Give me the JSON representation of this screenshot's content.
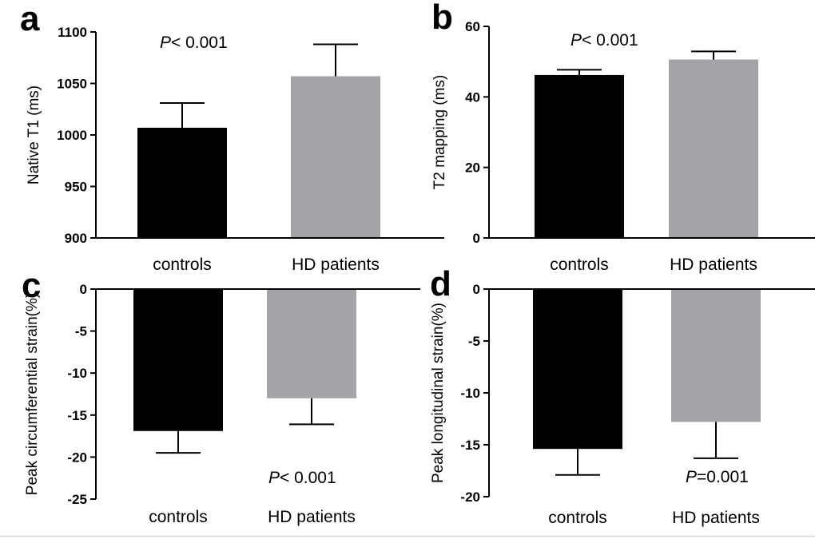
{
  "colors": {
    "controls": "#000000",
    "hd_patients": "#a3a3a8",
    "axis": "#000000"
  },
  "chart_data": [
    {
      "panel": "a",
      "type": "bar",
      "categories": [
        "controls",
        "HD patients"
      ],
      "values": [
        1007,
        1057
      ],
      "errors": [
        24,
        31
      ],
      "error_direction": "up",
      "ylabel": "Native T1 (ms)",
      "ylim": [
        900,
        1100
      ],
      "yticks": [
        900,
        950,
        1000,
        1050,
        1100
      ],
      "ytick_labels": [
        "900",
        "950",
        "1000",
        "1050",
        "1100"
      ],
      "annotation": {
        "p": "P",
        "text": "< 0.001"
      }
    },
    {
      "panel": "b",
      "type": "bar",
      "categories": [
        "controls",
        "HD patients"
      ],
      "values": [
        46.2,
        50.6
      ],
      "errors": [
        1.5,
        2.3
      ],
      "error_direction": "up",
      "ylabel": "T2 mapping (ms)",
      "ylim": [
        0,
        60
      ],
      "yticks": [
        0,
        20,
        40,
        60
      ],
      "ytick_labels": [
        "0",
        "20",
        "40",
        "60"
      ],
      "annotation": {
        "p": "P",
        "text": "< 0.001"
      }
    },
    {
      "panel": "c",
      "type": "bar",
      "categories": [
        "controls",
        "HD patients"
      ],
      "values": [
        -16.9,
        -13.0
      ],
      "errors": [
        2.6,
        3.1
      ],
      "error_direction": "down",
      "ylabel": "Peak circumferential strain(%)",
      "ylim": [
        -25,
        0
      ],
      "yticks": [
        0,
        -5,
        -10,
        -15,
        -20,
        -25
      ],
      "ytick_labels": [
        "0",
        "-5",
        "-10",
        "-15",
        "-20",
        "-25"
      ],
      "annotation": {
        "p": "P",
        "text": "< 0.001"
      }
    },
    {
      "panel": "d",
      "type": "bar",
      "categories": [
        "controls",
        "HD patients"
      ],
      "values": [
        -15.4,
        -12.8
      ],
      "errors": [
        2.5,
        3.5
      ],
      "error_direction": "down",
      "ylabel": "Peak longitudinal strain(%)",
      "ylim": [
        -20,
        0
      ],
      "yticks": [
        0,
        -5,
        -10,
        -15,
        -20
      ],
      "ytick_labels": [
        "0",
        "-5",
        "-10",
        "-15",
        "-20"
      ],
      "annotation": {
        "p": "P",
        "text": "=0.001"
      }
    }
  ]
}
